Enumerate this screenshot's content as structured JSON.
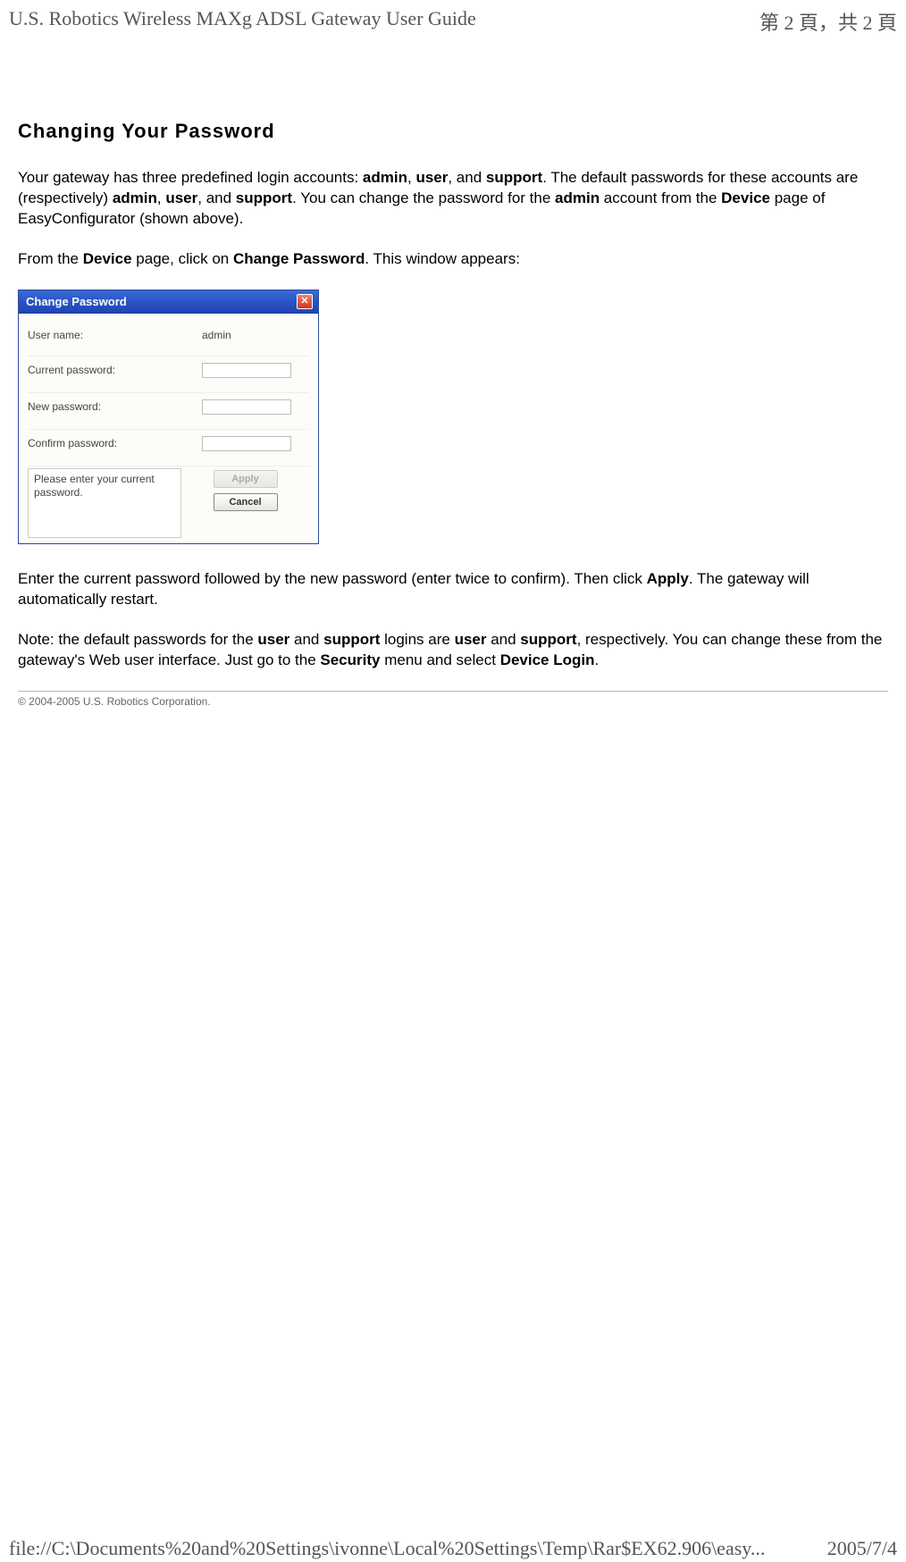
{
  "header": {
    "left": "U.S. Robotics Wireless MAXg ADSL Gateway User Guide",
    "right": "第 2 頁，共 2 頁"
  },
  "section": {
    "title": "Changing Your Password",
    "para1_pre": "Your gateway has three predefined login accounts: ",
    "para1_b1": "admin",
    "para1_m1": ", ",
    "para1_b2": "user",
    "para1_m2": ", and ",
    "para1_b3": "support",
    "para1_m3": ". The default passwords for these accounts are (respectively) ",
    "para1_b4": "admin",
    "para1_m4": ", ",
    "para1_b5": "user",
    "para1_m5": ", and ",
    "para1_b6": "support",
    "para1_m6": ". You can change the password for the ",
    "para1_b7": "admin",
    "para1_m7": " account from the ",
    "para1_b8": "Device",
    "para1_m8": " page of EasyConfigurator (shown above).",
    "para2_pre": "From the ",
    "para2_b1": "Device",
    "para2_m1": " page, click on ",
    "para2_b2": "Change Password",
    "para2_m2": ". This window appears:",
    "para3_pre": "Enter the current password followed by the new password (enter twice to confirm). Then click ",
    "para3_b1": "Apply",
    "para3_m1": ". The gateway will automatically restart.",
    "para4_pre": "Note: the default passwords for the ",
    "para4_b1": "user",
    "para4_m1": " and ",
    "para4_b2": "support",
    "para4_m2": " logins are ",
    "para4_b3": "user",
    "para4_m3": " and ",
    "para4_b4": "support",
    "para4_m4": ", respectively. You can change these from the gateway's Web user interface. Just go to the ",
    "para4_b5": "Security",
    "para4_m5": " menu and select ",
    "para4_b6": "Device Login",
    "para4_m6": "."
  },
  "dialog": {
    "title": "Change Password",
    "username_label": "User name:",
    "username_value": "admin",
    "current_label": "Current password:",
    "new_label": "New password:",
    "confirm_label": "Confirm password:",
    "hint": "Please enter your current password.",
    "apply": "Apply",
    "cancel": "Cancel",
    "close_glyph": "✕"
  },
  "copyright": "© 2004-2005 U.S. Robotics Corporation.",
  "footer": {
    "left": "file://C:\\Documents%20and%20Settings\\ivonne\\Local%20Settings\\Temp\\Rar$EX62.906\\easy...",
    "right": "2005/7/4"
  }
}
